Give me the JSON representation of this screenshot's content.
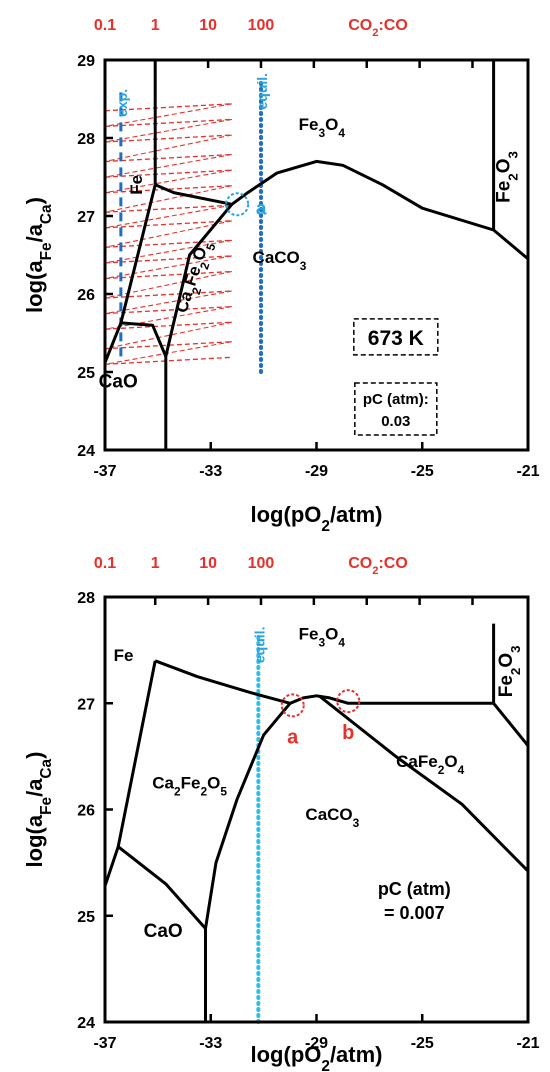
{
  "chart_data": [
    {
      "type": "line",
      "xlabel": "log(pO2/atm)",
      "xlabel_parts": [
        "log(pO",
        "2",
        "/atm)"
      ],
      "ylabel_parts": [
        "log(a",
        "Fe",
        "/a",
        "Ca",
        ")"
      ],
      "xlim": [
        -37,
        -21
      ],
      "ylim": [
        24,
        29
      ],
      "x_ticks": [
        -37,
        -33,
        -29,
        -25,
        -21
      ],
      "y_ticks": [
        24,
        25,
        26,
        27,
        28,
        29
      ],
      "x_tick_labels": [
        "-37",
        "-33",
        "-29",
        "-25",
        "-21"
      ],
      "y_tick_labels": [
        "24",
        "25",
        "26",
        "27",
        "28",
        "29"
      ],
      "top_axis": {
        "label_parts": [
          "CO",
          "2",
          ":CO"
        ],
        "ticks": [
          {
            "label": "0.1",
            "x": -37
          },
          {
            "label": "1",
            "x": -35.1
          },
          {
            "label": "10",
            "x": -33.1
          },
          {
            "label": "100",
            "x": -31.1
          },
          {
            "label": "",
            "x": -29.1
          },
          {
            "label": "",
            "x": -27.1
          },
          {
            "label": "",
            "x": -25.1
          },
          {
            "label": "",
            "x": -23.1
          }
        ]
      },
      "boundaries": [
        {
          "points": [
            [
              -37,
              25.12
            ],
            [
              -36.4,
              25.63
            ],
            [
              -35.2,
              25.6
            ],
            [
              -34.7,
              25.2
            ]
          ]
        },
        {
          "points": [
            [
              -36.4,
              25.63
            ],
            [
              -35.1,
              27.4
            ]
          ]
        },
        {
          "points": [
            [
              -35.1,
              27.4
            ],
            [
              -35.1,
              29
            ]
          ]
        },
        {
          "points": [
            [
              -35.1,
              27.4
            ],
            [
              -34.4,
              27.3
            ],
            [
              -32.2,
              27.15
            ],
            [
              -31.6,
              27.3
            ],
            [
              -30.5,
              27.55
            ],
            [
              -29,
              27.7
            ],
            [
              -28,
              27.65
            ],
            [
              -26.5,
              27.4
            ],
            [
              -25,
              27.1
            ],
            [
              -22.3,
              26.82
            ],
            [
              -21,
              26.45
            ]
          ]
        },
        {
          "points": [
            [
              -32.2,
              27.15
            ],
            [
              -33.8,
              26.5
            ],
            [
              -34.7,
              25.2
            ]
          ]
        },
        {
          "points": [
            [
              -34.7,
              25.2
            ],
            [
              -34.7,
              24
            ]
          ]
        },
        {
          "points": [
            [
              -22.3,
              26.82
            ],
            [
              -22.3,
              29
            ]
          ]
        }
      ],
      "exp_line": {
        "label": "exp.",
        "x": -36.4,
        "y_range": [
          25.2,
          29
        ]
      },
      "equil_line": {
        "label": "equil.",
        "x": -31.1,
        "y_range": [
          25.0,
          29
        ]
      },
      "red_dashed_y_start": [
        28.4,
        28.2,
        28.0,
        27.75,
        27.55,
        27.35,
        27.1,
        26.9,
        26.65,
        26.45,
        26.25,
        26.0,
        25.8,
        25.6,
        25.35,
        25.15
      ],
      "red_dashed_x_range": [
        -37,
        -32.2
      ],
      "circle_marks": [
        {
          "label": "a",
          "x": -32.0,
          "y": 27.15,
          "color": "#29a3e0"
        }
      ],
      "regions": [
        {
          "label": "Fe",
          "x": -35.6,
          "y": 27.4,
          "rotate": -90
        },
        {
          "label": "CaO",
          "x": -36.5,
          "y": 24.8,
          "rotate": 0
        },
        {
          "label": "CaCO3",
          "label_parts": [
            "CaCO",
            "3"
          ],
          "x": -30.4,
          "y": 26.4,
          "rotate": 0
        },
        {
          "label": "Fe3O4",
          "label_parts": [
            "Fe",
            "3",
            "O",
            "4"
          ],
          "x": -28.8,
          "y": 28.1,
          "rotate": 0
        },
        {
          "label": "Fe2O3",
          "label_parts": [
            "Fe",
            "2",
            "O",
            "3"
          ],
          "x": -21.7,
          "y": 27.5,
          "rotate": -90
        },
        {
          "label": "Ca2Fe2O5",
          "label_parts": [
            "Ca",
            "2",
            "Fe",
            "2",
            "O",
            "5"
          ],
          "x": -33.5,
          "y": 26.2,
          "rotate": -72
        }
      ],
      "annotations": [
        {
          "text": "673 K",
          "box": true,
          "x": -26.0,
          "y": 25.45,
          "size": "large"
        },
        {
          "text": "pC (atm):",
          "text2": "0.03",
          "box": true,
          "x": -26.0,
          "y": 24.5,
          "size": "small"
        }
      ]
    },
    {
      "type": "line",
      "xlabel": "log(pO2/atm)",
      "xlabel_parts": [
        "log(pO",
        "2",
        "/atm)"
      ],
      "ylabel_parts": [
        "log(a",
        "Fe",
        "/a",
        "Ca",
        ")"
      ],
      "xlim": [
        -37,
        -21
      ],
      "ylim": [
        24,
        28
      ],
      "x_ticks": [
        -37,
        -33,
        -29,
        -25,
        -21
      ],
      "y_ticks": [
        24,
        25,
        26,
        27,
        28
      ],
      "x_tick_labels": [
        "-37",
        "-33",
        "-29",
        "-25",
        "-21"
      ],
      "y_tick_labels": [
        "24",
        "25",
        "26",
        "27",
        "28"
      ],
      "top_axis": {
        "label_parts": [
          "CO",
          "2",
          ":CO"
        ],
        "ticks": [
          {
            "label": "0.1",
            "x": -37
          },
          {
            "label": "1",
            "x": -35.1
          },
          {
            "label": "10",
            "x": -33.1
          },
          {
            "label": "100",
            "x": -31.1
          },
          {
            "label": "",
            "x": -29.1
          },
          {
            "label": "",
            "x": -27.1
          },
          {
            "label": "",
            "x": -25.1
          },
          {
            "label": "",
            "x": -23.1
          }
        ]
      },
      "boundaries": [
        {
          "points": [
            [
              -37,
              25.28
            ],
            [
              -36.5,
              25.65
            ],
            [
              -34.7,
              25.3
            ],
            [
              -33.2,
              24.88
            ]
          ]
        },
        {
          "points": [
            [
              -36.5,
              25.65
            ],
            [
              -35.1,
              27.4
            ]
          ]
        },
        {
          "points": [
            [
              -35.1,
              27.4
            ],
            [
              -33.5,
              27.25
            ],
            [
              -31.5,
              27.1
            ],
            [
              -30.0,
              27.0
            ],
            [
              -29.5,
              27.05
            ],
            [
              -29.0,
              27.07
            ],
            [
              -28.5,
              27.05
            ],
            [
              -27.8,
              27.0
            ],
            [
              -25.5,
              27.0
            ],
            [
              -22.3,
              27.0
            ]
          ]
        },
        {
          "points": [
            [
              -30.0,
              27.0
            ],
            [
              -31.0,
              26.7
            ],
            [
              -32.0,
              26.1
            ],
            [
              -32.8,
              25.5
            ],
            [
              -33.2,
              24.88
            ]
          ]
        },
        {
          "points": [
            [
              -33.2,
              24.88
            ],
            [
              -33.2,
              24
            ]
          ]
        },
        {
          "points": [
            [
              -28.9,
              27.07
            ],
            [
              -26.0,
              26.5
            ],
            [
              -23.5,
              26.05
            ],
            [
              -21,
              25.42
            ]
          ]
        },
        {
          "points": [
            [
              -22.3,
              27.0
            ],
            [
              -21,
              26.6
            ]
          ]
        },
        {
          "points": [
            [
              -22.3,
              27.0
            ],
            [
              -22.3,
              27.75
            ]
          ]
        }
      ],
      "equil_line": {
        "label": "equil.",
        "x": -31.2,
        "y_range": [
          24,
          27.9
        ]
      },
      "circle_marks": [
        {
          "label": "a",
          "x": -29.9,
          "y": 26.98,
          "color": "#e8302a"
        },
        {
          "label": "b",
          "x": -27.8,
          "y": 27.02,
          "color": "#e8302a"
        }
      ],
      "regions": [
        {
          "label": "Fe",
          "x": -36.3,
          "y": 27.4,
          "rotate": 0
        },
        {
          "label": "CaO",
          "x": -34.8,
          "y": 24.8,
          "rotate": 0
        },
        {
          "label": "CaCO3",
          "label_parts": [
            "CaCO",
            "3"
          ],
          "x": -28.4,
          "y": 25.9,
          "rotate": 0
        },
        {
          "label": "Fe3O4",
          "label_parts": [
            "Fe",
            "3",
            "O",
            "4"
          ],
          "x": -28.8,
          "y": 27.6,
          "rotate": 0
        },
        {
          "label": "Fe2O3",
          "label_parts": [
            "Fe",
            "2",
            "O",
            "3"
          ],
          "x": -21.6,
          "y": 27.3,
          "rotate": -90
        },
        {
          "label": "CaFe2O4",
          "label_parts": [
            "CaFe",
            "2",
            "O",
            "4"
          ],
          "x": -24.7,
          "y": 26.4,
          "rotate": 0
        },
        {
          "label": "Ca2Fe2O5",
          "label_parts": [
            "Ca",
            "2",
            "Fe",
            "2",
            "O",
            "5"
          ],
          "x": -33.8,
          "y": 26.2,
          "rotate": 0
        }
      ],
      "annotations": [
        {
          "text": "pC (atm)",
          "text2": "= 0.007",
          "box": false,
          "x": -25.3,
          "y": 25.1,
          "size": "medium"
        }
      ]
    }
  ]
}
